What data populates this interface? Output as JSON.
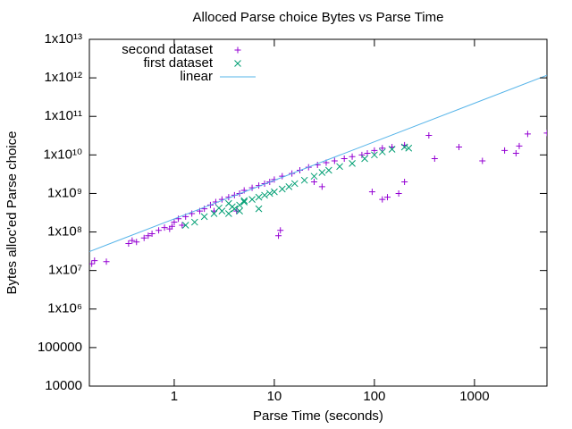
{
  "chart_data": {
    "type": "scatter",
    "title": "Alloced Parse choice Bytes vs Parse Time",
    "x_label": "Parse Time (seconds)",
    "y_label": "Bytes alloc'ed Parse choice",
    "xscale": "log",
    "yscale": "log",
    "xlim": [
      0.142,
      5300
    ],
    "ylim": [
      10000,
      10000000000000
    ],
    "xticks": [
      1,
      10,
      100,
      1000
    ],
    "yticks": [
      10000,
      100000,
      {
        "value": 1000000,
        "label": "1x10⁶"
      },
      {
        "value": 10000000,
        "label": "1x10⁷"
      },
      {
        "value": 100000000,
        "label": "1x10⁸"
      },
      {
        "value": 1000000000,
        "label": "1x10⁹"
      },
      {
        "value": 10000000000,
        "label": "1x10¹⁰"
      },
      {
        "value": 100000000000,
        "label": "1x10¹¹"
      },
      {
        "value": 1000000000000,
        "label": "1x10¹²"
      },
      {
        "value": 10000000000000,
        "label": "1x10¹³"
      }
    ],
    "legend": "top-left",
    "series": [
      {
        "name": "second dataset",
        "color": "#9400d3",
        "marker": "plus",
        "x": [
          0.15,
          0.16,
          0.21,
          0.35,
          0.38,
          0.42,
          0.5,
          0.55,
          0.6,
          0.7,
          0.8,
          0.9,
          1.0,
          1.1,
          1.3,
          1.5,
          1.8,
          2,
          2.3,
          2.6,
          3,
          3.5,
          4,
          4.5,
          5,
          6,
          7,
          8,
          9,
          10,
          12,
          15,
          18,
          22,
          27,
          33,
          40,
          50,
          60,
          75,
          85,
          100,
          120,
          150,
          200,
          350,
          400,
          700,
          1200,
          2000,
          2600,
          2800,
          3400,
          5300,
          11,
          11.5,
          95,
          120,
          135,
          200,
          175,
          4.2,
          2.5,
          1.2,
          0.95,
          25,
          30
        ],
        "values": [
          15000000,
          18000000,
          17000000,
          50000000,
          60000000,
          55000000,
          70000000,
          80000000,
          90000000,
          110000000,
          130000000,
          120000000,
          180000000,
          220000000,
          250000000,
          300000000,
          350000000,
          400000000,
          500000000,
          600000000,
          700000000,
          800000000,
          900000000,
          1000000000,
          1200000000,
          1400000000,
          1600000000,
          1800000000,
          2000000000,
          2300000000,
          2800000000,
          3300000000,
          4000000000,
          4800000000,
          5500000000,
          6300000000,
          7000000000,
          8000000000,
          9000000000,
          10000000000,
          11000000000,
          13000000000,
          15000000000,
          16000000000,
          18000000000,
          32000000000,
          8000000000,
          16000000000,
          7000000000,
          13000000000,
          11000000000,
          17000000000,
          35000000000,
          37000000000,
          80000000,
          110000000,
          1100000000,
          700000000,
          800000000,
          2000000000,
          1000000000,
          350000000,
          350000000,
          150000000,
          140000000,
          2000000000,
          1500000000
        ]
      },
      {
        "name": "first dataset",
        "color": "#009e73",
        "marker": "cross",
        "x": [
          1.3,
          1.6,
          2,
          2.5,
          3,
          3.5,
          4,
          4.5,
          5,
          6,
          7,
          8,
          9,
          10,
          12,
          14,
          16,
          20,
          25,
          30,
          35,
          45,
          60,
          80,
          100,
          120,
          150,
          200,
          220,
          7,
          3.8,
          4.5,
          5,
          3.5,
          2.8
        ],
        "values": [
          150000000,
          180000000,
          250000000,
          300000000,
          350000000,
          300000000,
          400000000,
          500000000,
          600000000,
          700000000,
          800000000,
          900000000,
          1000000000,
          1100000000,
          1300000000,
          1500000000,
          1800000000,
          2200000000,
          2800000000,
          3500000000,
          4000000000,
          5000000000,
          6000000000,
          8000000000,
          10000000000,
          12000000000,
          14000000000,
          16000000000,
          15000000000,
          400000000,
          450000000,
          350000000,
          650000000,
          550000000,
          420000000
        ]
      },
      {
        "name": "linear",
        "color": "#56b4e9",
        "marker": "line",
        "x": [
          0.142,
          5300
        ],
        "values": [
          31000000,
          1166000000000
        ]
      }
    ]
  }
}
